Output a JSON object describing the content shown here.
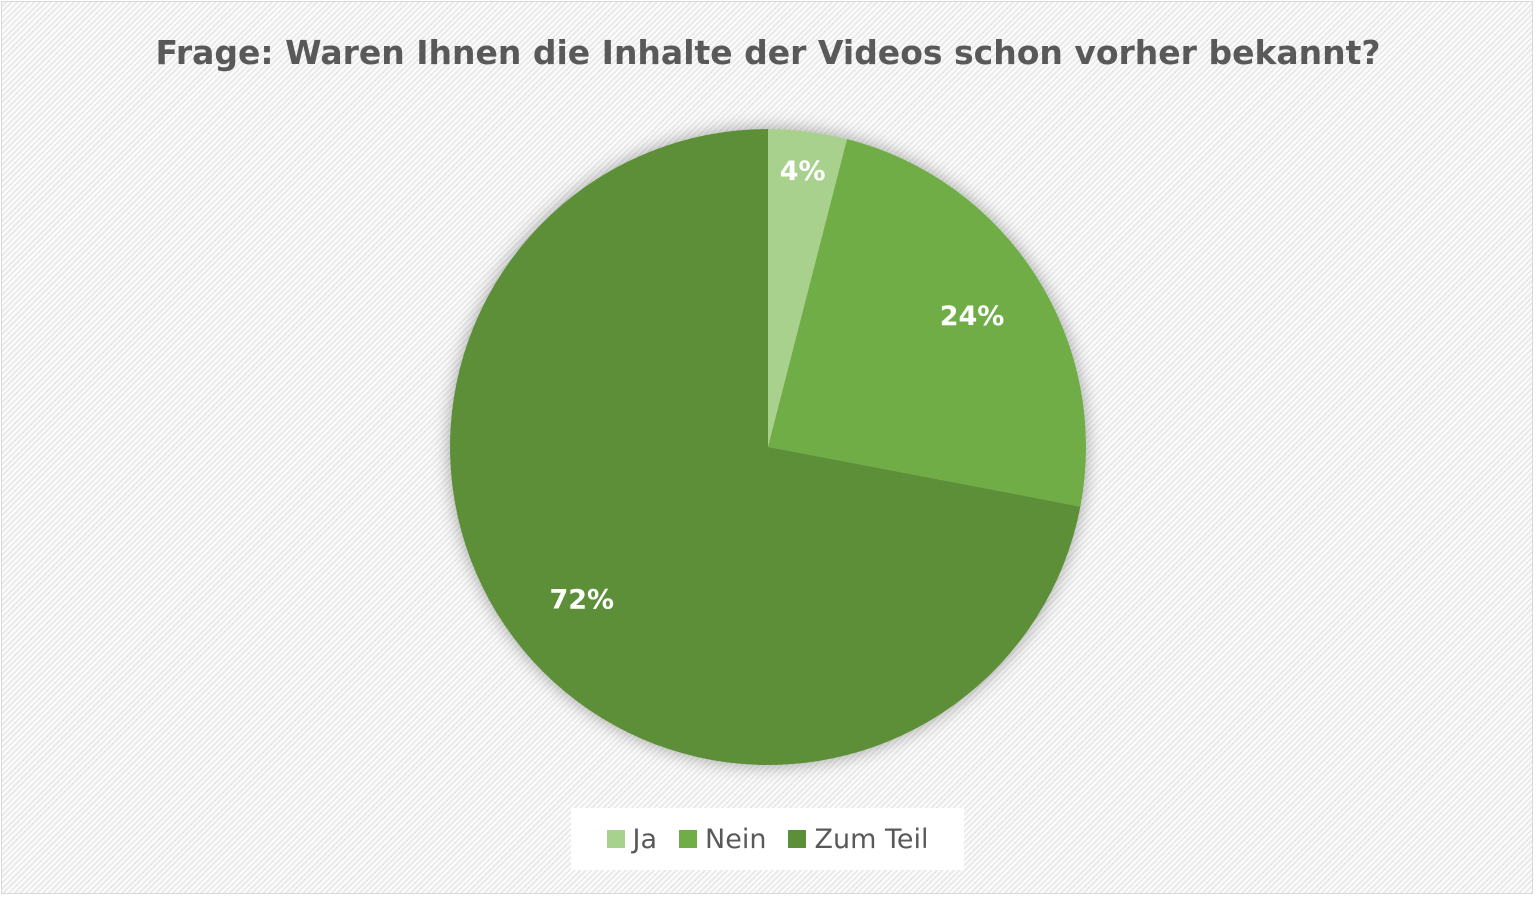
{
  "chart_data": {
    "type": "pie",
    "title": "Frage: Waren Ihnen die Inhalte der Videos schon vorher bekannt?",
    "categories": [
      "Ja",
      "Nein",
      "Zum Teil"
    ],
    "values": [
      4,
      24,
      72
    ],
    "data_labels": [
      "4%",
      "24%",
      "72%"
    ],
    "colors": [
      "#a9d18e",
      "#70ad47",
      "#5b8f38"
    ],
    "legend_position": "bottom"
  }
}
